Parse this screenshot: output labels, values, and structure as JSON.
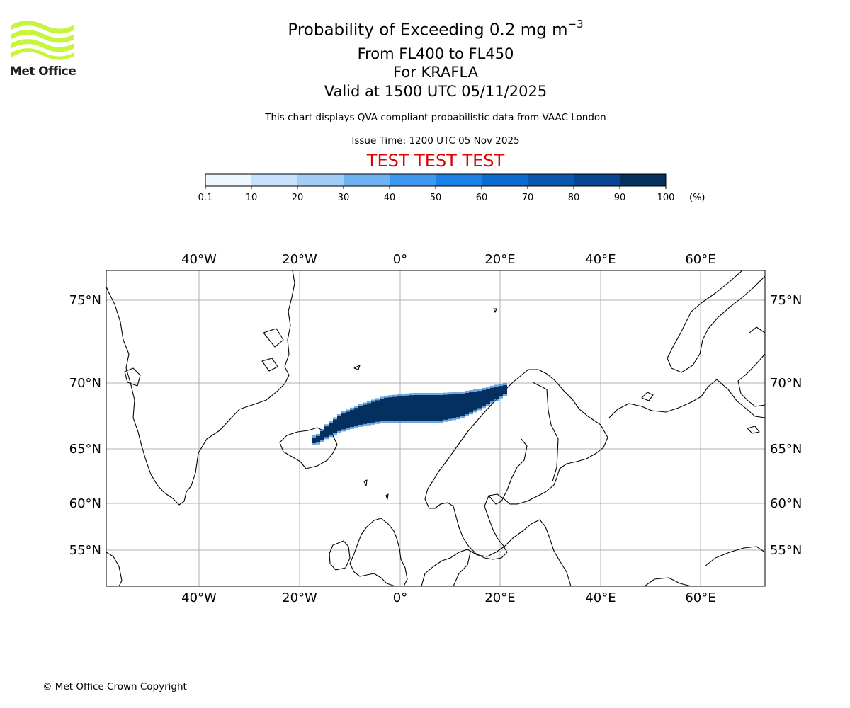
{
  "logo": {
    "text": "Met Office",
    "color": "#c6f53b"
  },
  "header": {
    "title_main": "Probability of Exceeding 0.2 mg m",
    "title_exponent": "−3",
    "flight_levels": "From FL400 to FL450",
    "volcano": "For KRAFLA",
    "valid_time": "Valid at 1500 UTC 05/11/2025",
    "description": "This chart displays QVA compliant probabilistic data from VAAC London",
    "issue_time": "Issue Time: 1200 UTC 05 Nov 2025",
    "test_banner": "TEST TEST TEST",
    "test_color": "#e00000"
  },
  "colorbar": {
    "tick_labels": [
      "0.1",
      "10",
      "20",
      "30",
      "40",
      "50",
      "60",
      "70",
      "80",
      "90",
      "100"
    ],
    "unit": "(%)",
    "colors": [
      "#eef6ff",
      "#c6e2fb",
      "#a2cdf6",
      "#6fb1f1",
      "#3f98ef",
      "#1b81e6",
      "#0d6acd",
      "#0957ad",
      "#074590",
      "#03305e"
    ]
  },
  "map": {
    "lon_labels": [
      "40°W",
      "20°W",
      "0°",
      "20°E",
      "40°E",
      "60°E"
    ],
    "lat_labels": [
      "75°N",
      "70°N",
      "65°N",
      "60°N",
      "55°N"
    ],
    "plume_probability_percent": 100
  },
  "footer": {
    "copyright": "© Met Office Crown Copyright"
  }
}
